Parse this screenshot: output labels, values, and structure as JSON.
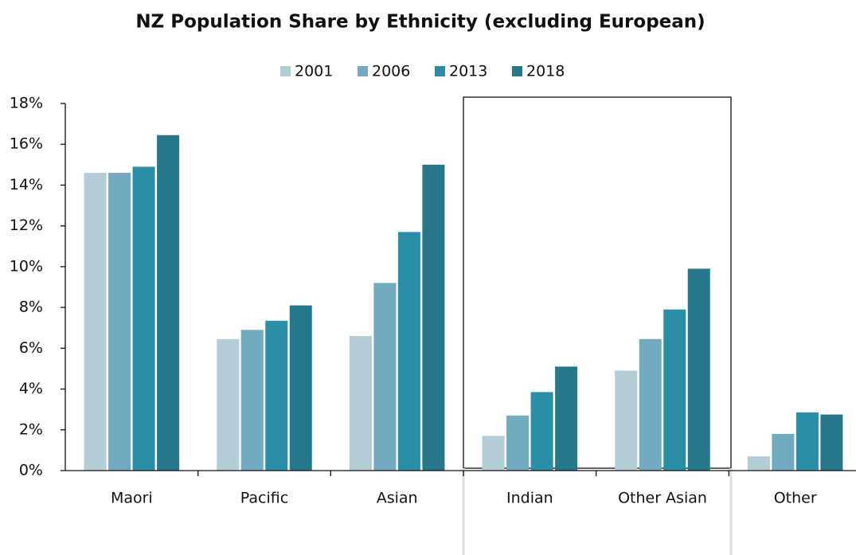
{
  "chart_data": {
    "type": "bar",
    "title": "NZ Population Share by Ethnicity (excluding European)",
    "categories": [
      "Maori",
      "Pacific",
      "Asian",
      "Indian",
      "Other Asian",
      "Other"
    ],
    "series": [
      {
        "name": "2001",
        "color": "#b3ccd6",
        "values": [
          14.6,
          6.45,
          6.6,
          1.7,
          4.9,
          0.7
        ]
      },
      {
        "name": "2006",
        "color": "#72aabf",
        "values": [
          14.6,
          6.9,
          9.2,
          2.7,
          6.45,
          1.8
        ]
      },
      {
        "name": "2013",
        "color": "#2a8ea6",
        "values": [
          14.9,
          7.35,
          11.7,
          3.85,
          7.9,
          2.85
        ]
      },
      {
        "name": "2018",
        "color": "#27778a",
        "values": [
          16.45,
          8.1,
          15.0,
          5.1,
          9.9,
          2.75
        ]
      }
    ],
    "ylim": [
      0,
      18
    ],
    "yticks": [
      {
        "value": 0,
        "label": "0%"
      },
      {
        "value": 2,
        "label": "2%"
      },
      {
        "value": 4,
        "label": "4%"
      },
      {
        "value": 6,
        "label": "6%"
      },
      {
        "value": 8,
        "label": "8%"
      },
      {
        "value": 10,
        "label": "10%"
      },
      {
        "value": 12,
        "label": "12%"
      },
      {
        "value": 14,
        "label": "14%"
      },
      {
        "value": 16,
        "label": "16%"
      },
      {
        "value": 18,
        "label": "18%"
      }
    ],
    "legend": "top"
  }
}
